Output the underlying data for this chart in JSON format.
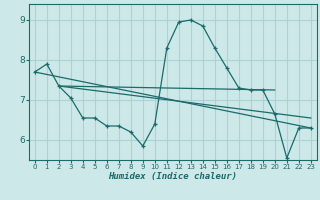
{
  "title": "",
  "xlabel": "Humidex (Indice chaleur)",
  "ylabel": "",
  "bg_color": "#cce8e8",
  "line_color": "#1a6b6b",
  "grid_color": "#aad4d4",
  "xlim": [
    -0.5,
    23.5
  ],
  "ylim": [
    5.5,
    9.4
  ],
  "yticks": [
    6,
    7,
    8,
    9
  ],
  "xticks": [
    0,
    1,
    2,
    3,
    4,
    5,
    6,
    7,
    8,
    9,
    10,
    11,
    12,
    13,
    14,
    15,
    16,
    17,
    18,
    19,
    20,
    21,
    22,
    23
  ],
  "series1_x": [
    0,
    1,
    2,
    3,
    4,
    5,
    6,
    7,
    8,
    9,
    10,
    11,
    12,
    13,
    14,
    15,
    16,
    17,
    18,
    19,
    20,
    21,
    22,
    23
  ],
  "series1_y": [
    7.7,
    7.9,
    7.35,
    7.05,
    6.55,
    6.55,
    6.35,
    6.35,
    6.2,
    5.85,
    6.4,
    8.3,
    8.95,
    9.0,
    8.85,
    8.3,
    7.8,
    7.3,
    7.25,
    7.25,
    6.65,
    5.55,
    6.3,
    6.3
  ],
  "series2_x": [
    2,
    20
  ],
  "series2_y": [
    7.35,
    7.25
  ],
  "series3_x": [
    0,
    23
  ],
  "series3_y": [
    7.7,
    6.3
  ],
  "series4_x": [
    2,
    23
  ],
  "series4_y": [
    7.35,
    6.55
  ]
}
